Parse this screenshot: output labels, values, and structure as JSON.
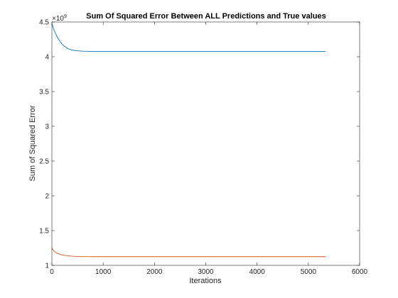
{
  "chart_data": {
    "type": "line",
    "title": "Sum Of Squared Error Between ALL Predictions and True values",
    "xlabel": "Iterations",
    "ylabel": "Sum of Squared Error",
    "xlim": [
      0,
      6000
    ],
    "ylim": [
      1,
      4.5
    ],
    "y_multiplier": {
      "base": "×10",
      "exponent": "9"
    },
    "x_ticks": [
      0,
      1000,
      2000,
      3000,
      4000,
      5000,
      6000
    ],
    "y_ticks": [
      1,
      1.5,
      2,
      2.5,
      3,
      3.5,
      4,
      4.5
    ],
    "grid": false,
    "box": true,
    "series": [
      {
        "color": "#0072BD",
        "x": [
          0,
          25,
          50,
          100,
          150,
          200,
          250,
          300,
          400,
          500,
          600,
          700,
          800,
          1000,
          1500,
          2000,
          3000,
          4000,
          5000,
          5340
        ],
        "values": [
          4.48,
          4.42,
          4.37,
          4.29,
          4.23,
          4.18,
          4.15,
          4.12,
          4.095,
          4.085,
          4.08,
          4.078,
          4.077,
          4.077,
          4.077,
          4.077,
          4.077,
          4.077,
          4.077,
          4.077
        ]
      },
      {
        "color": "#D95319",
        "x": [
          0,
          25,
          50,
          100,
          150,
          200,
          300,
          400,
          500,
          600,
          800,
          1000,
          1500,
          2000,
          3000,
          4000,
          5000,
          5340
        ],
        "values": [
          1.25,
          1.22,
          1.2,
          1.175,
          1.16,
          1.15,
          1.138,
          1.132,
          1.128,
          1.126,
          1.125,
          1.125,
          1.125,
          1.125,
          1.125,
          1.125,
          1.125,
          1.125
        ]
      }
    ]
  }
}
